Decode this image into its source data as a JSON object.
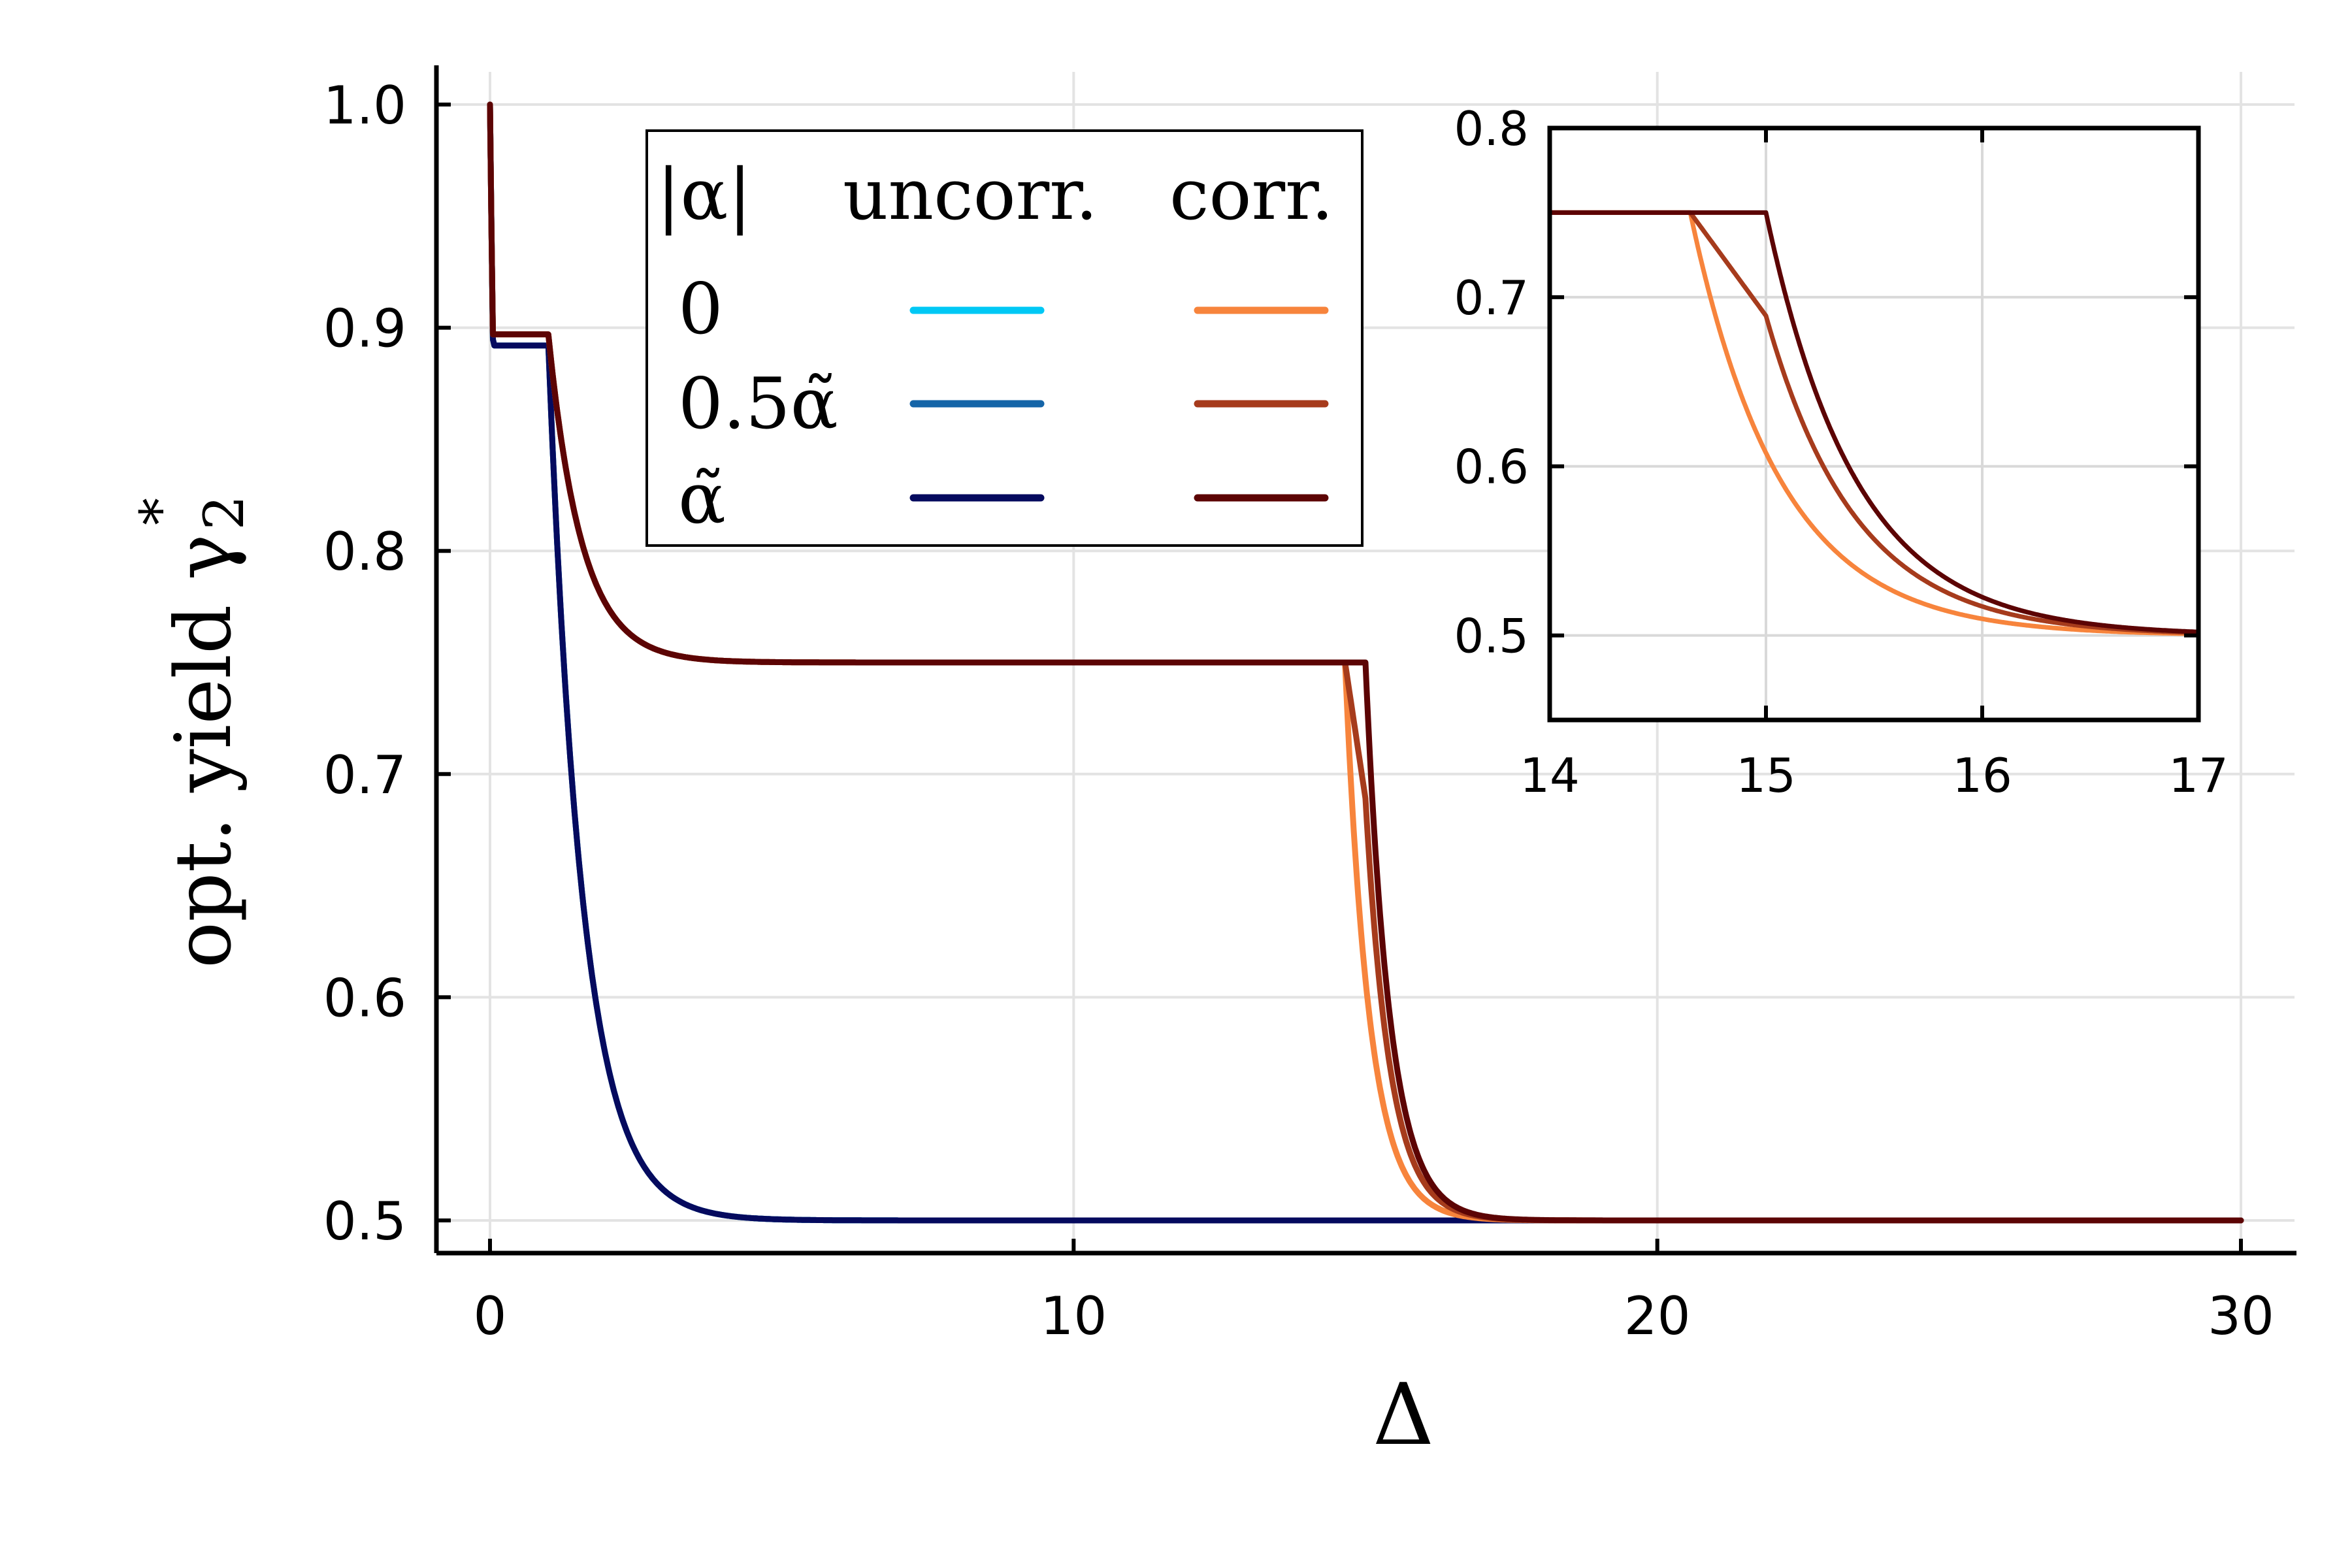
{
  "chart_data": [
    {
      "type": "line",
      "name": "main",
      "xlabel": "Δ",
      "ylabel": "opt. yield γ",
      "ylabel_sub": "2",
      "ylabel_sup": "*",
      "xlim": [
        0,
        30
      ],
      "ylim": [
        0.5,
        1.0
      ],
      "xticks": [
        0,
        10,
        20,
        30
      ],
      "yticks": [
        0.5,
        0.6,
        0.7,
        0.8,
        0.9,
        1.0
      ],
      "xtick_labels": [
        "0",
        "10",
        "20",
        "30"
      ],
      "ytick_labels": [
        "0.5",
        "0.6",
        "0.7",
        "0.8",
        "0.9",
        "1.0"
      ],
      "grid": true,
      "legend": {
        "placement": "top-center",
        "header": [
          "|α|",
          "uncorr.",
          "corr."
        ],
        "rows": [
          "0",
          "0.5α̃",
          "α̃"
        ]
      },
      "series": [
        {
          "name": "uncorr. |α|=0",
          "group": "uncorr",
          "alpha_row": 0,
          "color": "#00c8f5",
          "x_kink": 1.0,
          "kink_y": 0.892,
          "x_plateau_end": 1.0,
          "plateau": 0.5
        },
        {
          "name": "uncorr. |α|=0.5α̃",
          "group": "uncorr",
          "alpha_row": 1,
          "color": "#1565a8",
          "x_kink": 1.0,
          "kink_y": 0.892,
          "x_plateau_end": 1.0,
          "plateau": 0.5
        },
        {
          "name": "uncorr. |α|=α̃",
          "group": "uncorr",
          "alpha_row": 2,
          "color": "#050a5e",
          "x_kink": 1.0,
          "kink_y": 0.892,
          "x_plateau_end": 1.0,
          "plateau": 0.5
        },
        {
          "name": "corr. |α|=0",
          "group": "corr",
          "alpha_row": 0,
          "color": "#f7843c",
          "x_kink": 1.0,
          "kink_y": 0.897,
          "x_plateau_end": 14.65,
          "plateau": 0.75,
          "drop_rate": 2.4
        },
        {
          "name": "corr. |α|=0.5α̃",
          "group": "corr",
          "alpha_row": 1,
          "color": "#a63b1c",
          "x_kink": 1.0,
          "kink_y": 0.897,
          "x_plateau_end": 14.65,
          "plateau": 0.75,
          "mid_x": 15.0,
          "mid_y": 0.689,
          "drop_rate": 2.4
        },
        {
          "name": "corr. |α|=α̃",
          "group": "corr",
          "alpha_row": 2,
          "color": "#5c0404",
          "x_kink": 1.0,
          "kink_y": 0.897,
          "x_plateau_end": 15.0,
          "plateau": 0.75,
          "drop_rate": 2.4
        }
      ]
    },
    {
      "type": "line",
      "name": "inset",
      "xlim": [
        14,
        17
      ],
      "ylim": [
        0.45,
        0.8
      ],
      "xticks": [
        14,
        15,
        16,
        17
      ],
      "yticks": [
        0.5,
        0.6,
        0.7,
        0.8
      ],
      "xtick_labels": [
        "14",
        "15",
        "16",
        "17"
      ],
      "ytick_labels": [
        "0.5",
        "0.6",
        "0.7",
        "0.8"
      ],
      "grid": true,
      "series_ref": "main.corr"
    }
  ]
}
